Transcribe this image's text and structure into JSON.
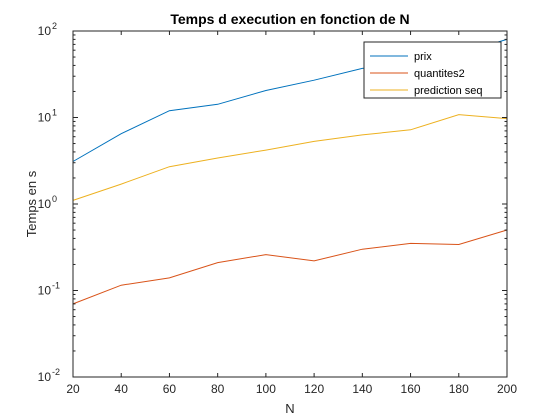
{
  "chart_data": {
    "type": "line",
    "title": "Temps d execution en fonction de N",
    "xlabel": "N",
    "ylabel": "Temps en s",
    "x": [
      20,
      40,
      60,
      80,
      100,
      120,
      140,
      160,
      180,
      200
    ],
    "xlim": [
      20,
      200
    ],
    "xticks": [
      20,
      40,
      60,
      80,
      100,
      120,
      140,
      160,
      180,
      200
    ],
    "ylim": [
      0.01,
      100
    ],
    "yscale": "log",
    "yticks": [
      {
        "value": 0.01,
        "base": "10",
        "exp": "-2"
      },
      {
        "value": 0.1,
        "base": "10",
        "exp": "-1"
      },
      {
        "value": 1,
        "base": "10",
        "exp": "0"
      },
      {
        "value": 10,
        "base": "10",
        "exp": "1"
      },
      {
        "value": 100,
        "base": "10",
        "exp": "2"
      }
    ],
    "grid": false,
    "legend_position": "top-right",
    "series": [
      {
        "name": "prix",
        "color": "#0072BD",
        "values": [
          3.1,
          6.5,
          12,
          14.2,
          20.5,
          27,
          37,
          42,
          55,
          80
        ]
      },
      {
        "name": "quantites2",
        "color": "#D95319",
        "values": [
          0.07,
          0.115,
          0.14,
          0.21,
          0.26,
          0.22,
          0.3,
          0.35,
          0.34,
          0.5
        ]
      },
      {
        "name": "prediction seq",
        "color": "#EDB120",
        "values": [
          1.1,
          1.7,
          2.7,
          3.4,
          4.2,
          5.3,
          6.3,
          7.2,
          10.8,
          9.7
        ]
      }
    ]
  }
}
